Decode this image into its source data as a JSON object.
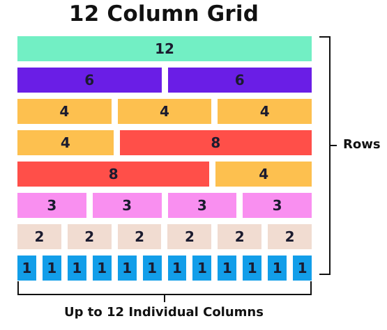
{
  "title": "12 Column Grid",
  "rows_label": "Rows",
  "columns_label": "Up to 12 Individual Columns",
  "colors": {
    "12": "#72efc4",
    "6": "#6a1ee6",
    "4": "#fdc04f",
    "8": "#ff4f49",
    "3": "#f98ff0",
    "2": "#f1dcd1",
    "1": "#129ee9"
  },
  "grid_rows": [
    {
      "cells": [
        {
          "label": "12",
          "span": 12
        }
      ]
    },
    {
      "cells": [
        {
          "label": "6",
          "span": 6
        },
        {
          "label": "6",
          "span": 6
        }
      ]
    },
    {
      "cells": [
        {
          "label": "4",
          "span": 4
        },
        {
          "label": "4",
          "span": 4
        },
        {
          "label": "4",
          "span": 4
        }
      ]
    },
    {
      "cells": [
        {
          "label": "4",
          "span": 4
        },
        {
          "label": "8",
          "span": 8
        }
      ]
    },
    {
      "cells": [
        {
          "label": "8",
          "span": 8
        },
        {
          "label": "4",
          "span": 4
        }
      ]
    },
    {
      "cells": [
        {
          "label": "3",
          "span": 3
        },
        {
          "label": "3",
          "span": 3
        },
        {
          "label": "3",
          "span": 3
        },
        {
          "label": "3",
          "span": 3
        }
      ]
    },
    {
      "cells": [
        {
          "label": "2",
          "span": 2
        },
        {
          "label": "2",
          "span": 2
        },
        {
          "label": "2",
          "span": 2
        },
        {
          "label": "2",
          "span": 2
        },
        {
          "label": "2",
          "span": 2
        },
        {
          "label": "2",
          "span": 2
        }
      ]
    },
    {
      "cells": [
        {
          "label": "1",
          "span": 1
        },
        {
          "label": "1",
          "span": 1
        },
        {
          "label": "1",
          "span": 1
        },
        {
          "label": "1",
          "span": 1
        },
        {
          "label": "1",
          "span": 1
        },
        {
          "label": "1",
          "span": 1
        },
        {
          "label": "1",
          "span": 1
        },
        {
          "label": "1",
          "span": 1
        },
        {
          "label": "1",
          "span": 1
        },
        {
          "label": "1",
          "span": 1
        },
        {
          "label": "1",
          "span": 1
        },
        {
          "label": "1",
          "span": 1
        }
      ]
    }
  ]
}
